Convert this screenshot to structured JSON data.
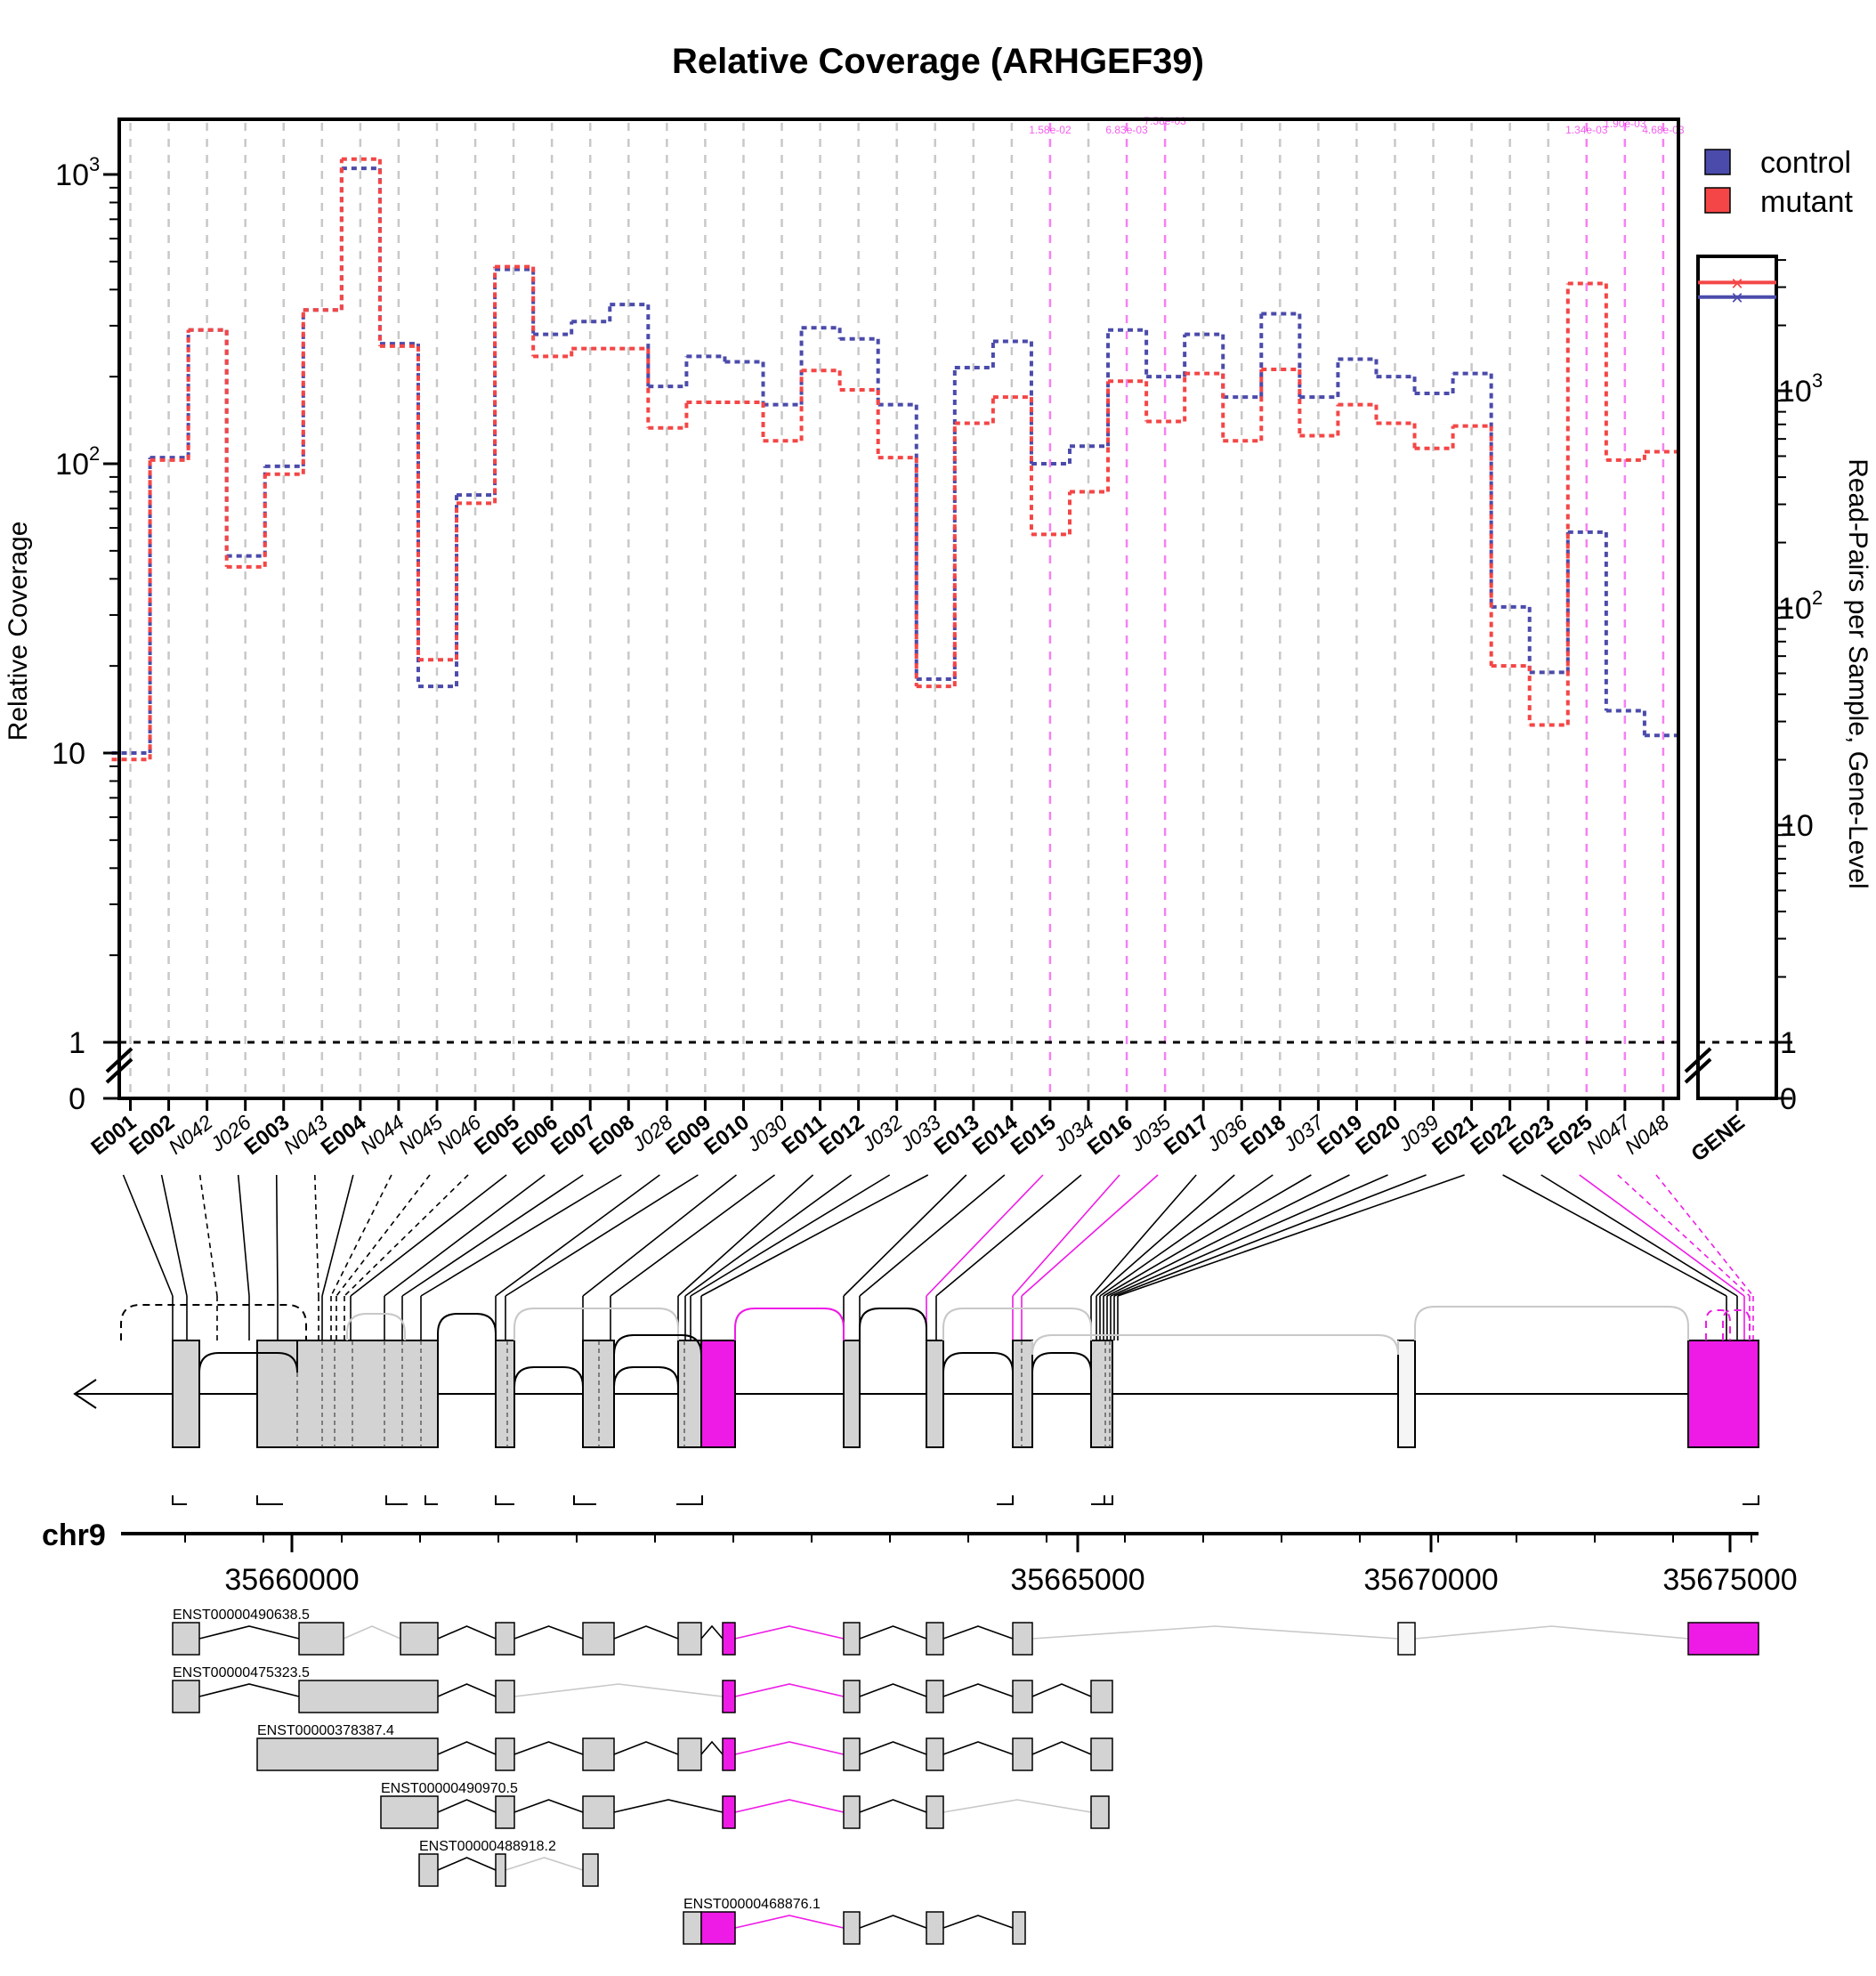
{
  "chart_data": {
    "type": "line",
    "title": "Relative Coverage (ARHGEF39)",
    "ylabel": "Relative Coverage",
    "y2label": "Read-Pairs per Sample, Gene-Level",
    "yscale": "log",
    "ylim": [
      0.7,
      1500
    ],
    "y_ticks": [
      "0",
      "1",
      "10",
      "10^2",
      "10^3"
    ],
    "y2_ticks": [
      "0",
      "1",
      "10",
      "10^2",
      "10^3"
    ],
    "legend_position": "top-right",
    "colors": {
      "control": "#4b4bab",
      "mutant": "#f44646",
      "significant": "#ee1be6",
      "grid": "#c8c8c8"
    },
    "series": [
      {
        "name": "control",
        "values": [
          10,
          105,
          290,
          48,
          98,
          340,
          1050,
          260,
          17,
          78,
          470,
          280,
          310,
          355,
          185,
          235,
          225,
          160,
          295,
          270,
          160,
          18,
          215,
          265,
          100,
          115,
          290,
          200,
          280,
          170,
          330,
          170,
          230,
          200,
          175,
          205,
          32,
          19,
          58,
          14,
          11.5
        ]
      },
      {
        "name": "mutant",
        "values": [
          9.5,
          103,
          290,
          44,
          92,
          340,
          1130,
          255,
          21,
          73,
          480,
          235,
          250,
          250,
          133,
          163,
          163,
          120,
          210,
          180,
          105,
          17,
          138,
          170,
          57,
          80,
          193,
          140,
          205,
          120,
          212,
          125,
          160,
          138,
          113,
          135,
          20,
          12.5,
          420,
          103,
          110
        ]
      }
    ],
    "categories": [
      "E001",
      "E002",
      "N042",
      "J026",
      "E003",
      "N043",
      "E004",
      "N044",
      "N045",
      "N046",
      "E005",
      "E006",
      "E007",
      "E008",
      "J028",
      "E009",
      "E010",
      "J030",
      "E011",
      "E012",
      "J032",
      "J033",
      "E013",
      "E014",
      "E015",
      "J034",
      "E016",
      "J035",
      "E017",
      "J036",
      "E018",
      "J037",
      "E019",
      "E020",
      "J039",
      "E021",
      "E022",
      "E023",
      "E025",
      "N047",
      "N048"
    ],
    "bold_categories": [
      "E001",
      "E002",
      "E003",
      "E004",
      "E005",
      "E006",
      "E007",
      "E008",
      "E009",
      "E010",
      "E011",
      "E012",
      "E013",
      "E014",
      "E015",
      "E016",
      "E017",
      "E018",
      "E019",
      "E020",
      "E021",
      "E022",
      "E023",
      "E025"
    ],
    "significant_categories": [
      "E015",
      "E016",
      "J035",
      "E025",
      "N047",
      "N048"
    ],
    "significance_labels": [
      "1.58e-02",
      "6.83e-03",
      "7.58e-03",
      "1.34e-03",
      "1.90e-03",
      "4.68e-03"
    ],
    "gene": {
      "label": "GENE",
      "control": 2700,
      "mutant": 3150
    },
    "chromosome": "chr9",
    "genome_ticks": [
      "35660000",
      "35665000",
      "35670000",
      "35675000"
    ],
    "transcripts": [
      "ENST00000490638.5",
      "ENST00000475323.5",
      "ENST00000378387.4",
      "ENST00000490970.5",
      "ENST00000488918.2",
      "ENST00000468876.1"
    ]
  }
}
